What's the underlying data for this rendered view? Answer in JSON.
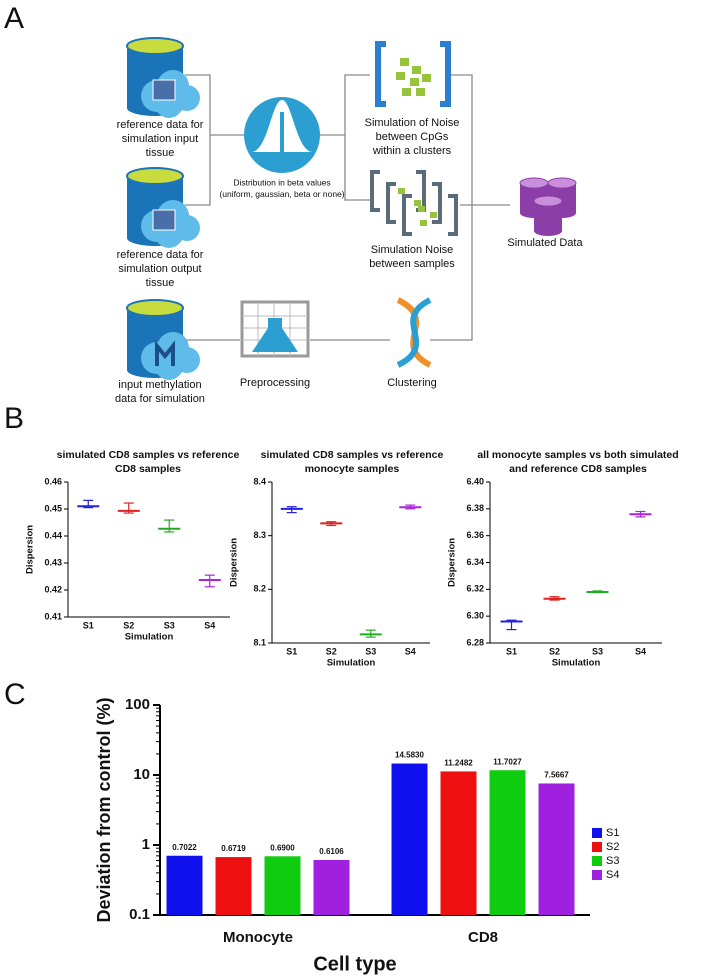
{
  "panel_labels": [
    "A",
    "B",
    "C"
  ],
  "diagram": {
    "nodes": [
      {
        "lines": [
          "reference data for",
          "simulation input",
          "tissue"
        ]
      },
      {
        "lines": [
          "reference data for",
          "simulation output",
          "tissue"
        ]
      },
      {
        "lines": [
          "input methylation",
          "data for simulation"
        ]
      },
      {
        "lines": [
          "Distribution in beta values",
          "(uniform, gaussian, beta or none)"
        ]
      },
      {
        "lines": [
          "Simulation of Noise",
          "between CpGs",
          "within a clusters"
        ]
      },
      {
        "lines": [
          "Simulation Noise",
          "between samples"
        ]
      },
      {
        "lines": [
          "Simulated Data"
        ]
      },
      {
        "lines": [
          "Preprocessing"
        ]
      },
      {
        "lines": [
          "Clustering"
        ]
      }
    ]
  },
  "chart_data": [
    {
      "type": "errorbar",
      "title": [
        "simulated CD8 samples vs reference",
        "CD8 samples"
      ],
      "xlabel": "Simulation",
      "ylabel": "Dispersion",
      "categories": [
        "S1",
        "S2",
        "S3",
        "S4"
      ],
      "colors": [
        "#2222dd",
        "#dd2222",
        "#22aa22",
        "#aa22dd"
      ],
      "values": [
        0.451,
        0.4493,
        0.4427,
        0.4237
      ],
      "low": [
        0.4505,
        0.4485,
        0.4415,
        0.4212
      ],
      "high": [
        0.4532,
        0.4522,
        0.4459,
        0.4255
      ],
      "ylim": [
        0.41,
        0.46
      ],
      "yticks": [
        0.41,
        0.42,
        0.43,
        0.44,
        0.45,
        0.46
      ]
    },
    {
      "type": "errorbar",
      "title": [
        "simulated CD8 samples vs reference",
        "monocyte samples"
      ],
      "xlabel": "Simulation",
      "ylabel": "Dispersion",
      "categories": [
        "S1",
        "S2",
        "S3",
        "S4"
      ],
      "colors": [
        "#2222dd",
        "#dd2222",
        "#22aa22",
        "#aa22dd"
      ],
      "values": [
        8.35,
        8.323,
        8.116,
        8.353
      ],
      "low": [
        8.343,
        8.319,
        8.111,
        8.35
      ],
      "high": [
        8.354,
        8.326,
        8.124,
        8.357
      ],
      "ylim": [
        8.1,
        8.4
      ],
      "yticks": [
        8.1,
        8.2,
        8.3,
        8.4
      ]
    },
    {
      "type": "errorbar",
      "title": [
        "all monocyte samples vs both simulated",
        "and reference CD8 samples"
      ],
      "xlabel": "Simulation",
      "ylabel": "Dispersion",
      "categories": [
        "S1",
        "S2",
        "S3",
        "S4"
      ],
      "colors": [
        "#2222dd",
        "#dd2222",
        "#22aa22",
        "#aa22dd"
      ],
      "values": [
        6.296,
        6.313,
        6.318,
        6.376
      ],
      "low": [
        6.29,
        6.312,
        6.3175,
        6.374
      ],
      "high": [
        6.297,
        6.3145,
        6.3188,
        6.378
      ],
      "ylim": [
        6.28,
        6.4
      ],
      "yticks": [
        6.28,
        {
          "value": 6.3,
          "label": "6.30"
        },
        6.32,
        6.34,
        6.36,
        6.38,
        {
          "value": 6.4,
          "label": "6.40"
        }
      ]
    },
    {
      "type": "bar",
      "log_scale": true,
      "xlabel": "Cell type",
      "ylabel": "Deviation from control (%)",
      "legend": "right",
      "categories": [
        "Monocyte",
        "CD8"
      ],
      "series": [
        {
          "name": "S1",
          "color": "#1010ee",
          "values": [
            0.7022,
            14.583
          ],
          "value_labels": [
            "0.7022",
            "14.5830"
          ]
        },
        {
          "name": "S2",
          "color": "#ee1010",
          "values": [
            0.6719,
            11.2482
          ],
          "value_labels": [
            "0.6719",
            "11.2482"
          ]
        },
        {
          "name": "S3",
          "color": "#10cc10",
          "values": [
            0.69,
            11.7027
          ],
          "value_labels": [
            "0.6900",
            "11.7027"
          ]
        },
        {
          "name": "S4",
          "color": "#a020e0",
          "values": [
            0.6106,
            7.5667
          ],
          "value_labels": [
            "0.6106",
            "7.5667"
          ]
        }
      ],
      "ylim": [
        0.1,
        100
      ],
      "yticks": [
        0.1,
        1,
        10,
        100
      ]
    }
  ]
}
